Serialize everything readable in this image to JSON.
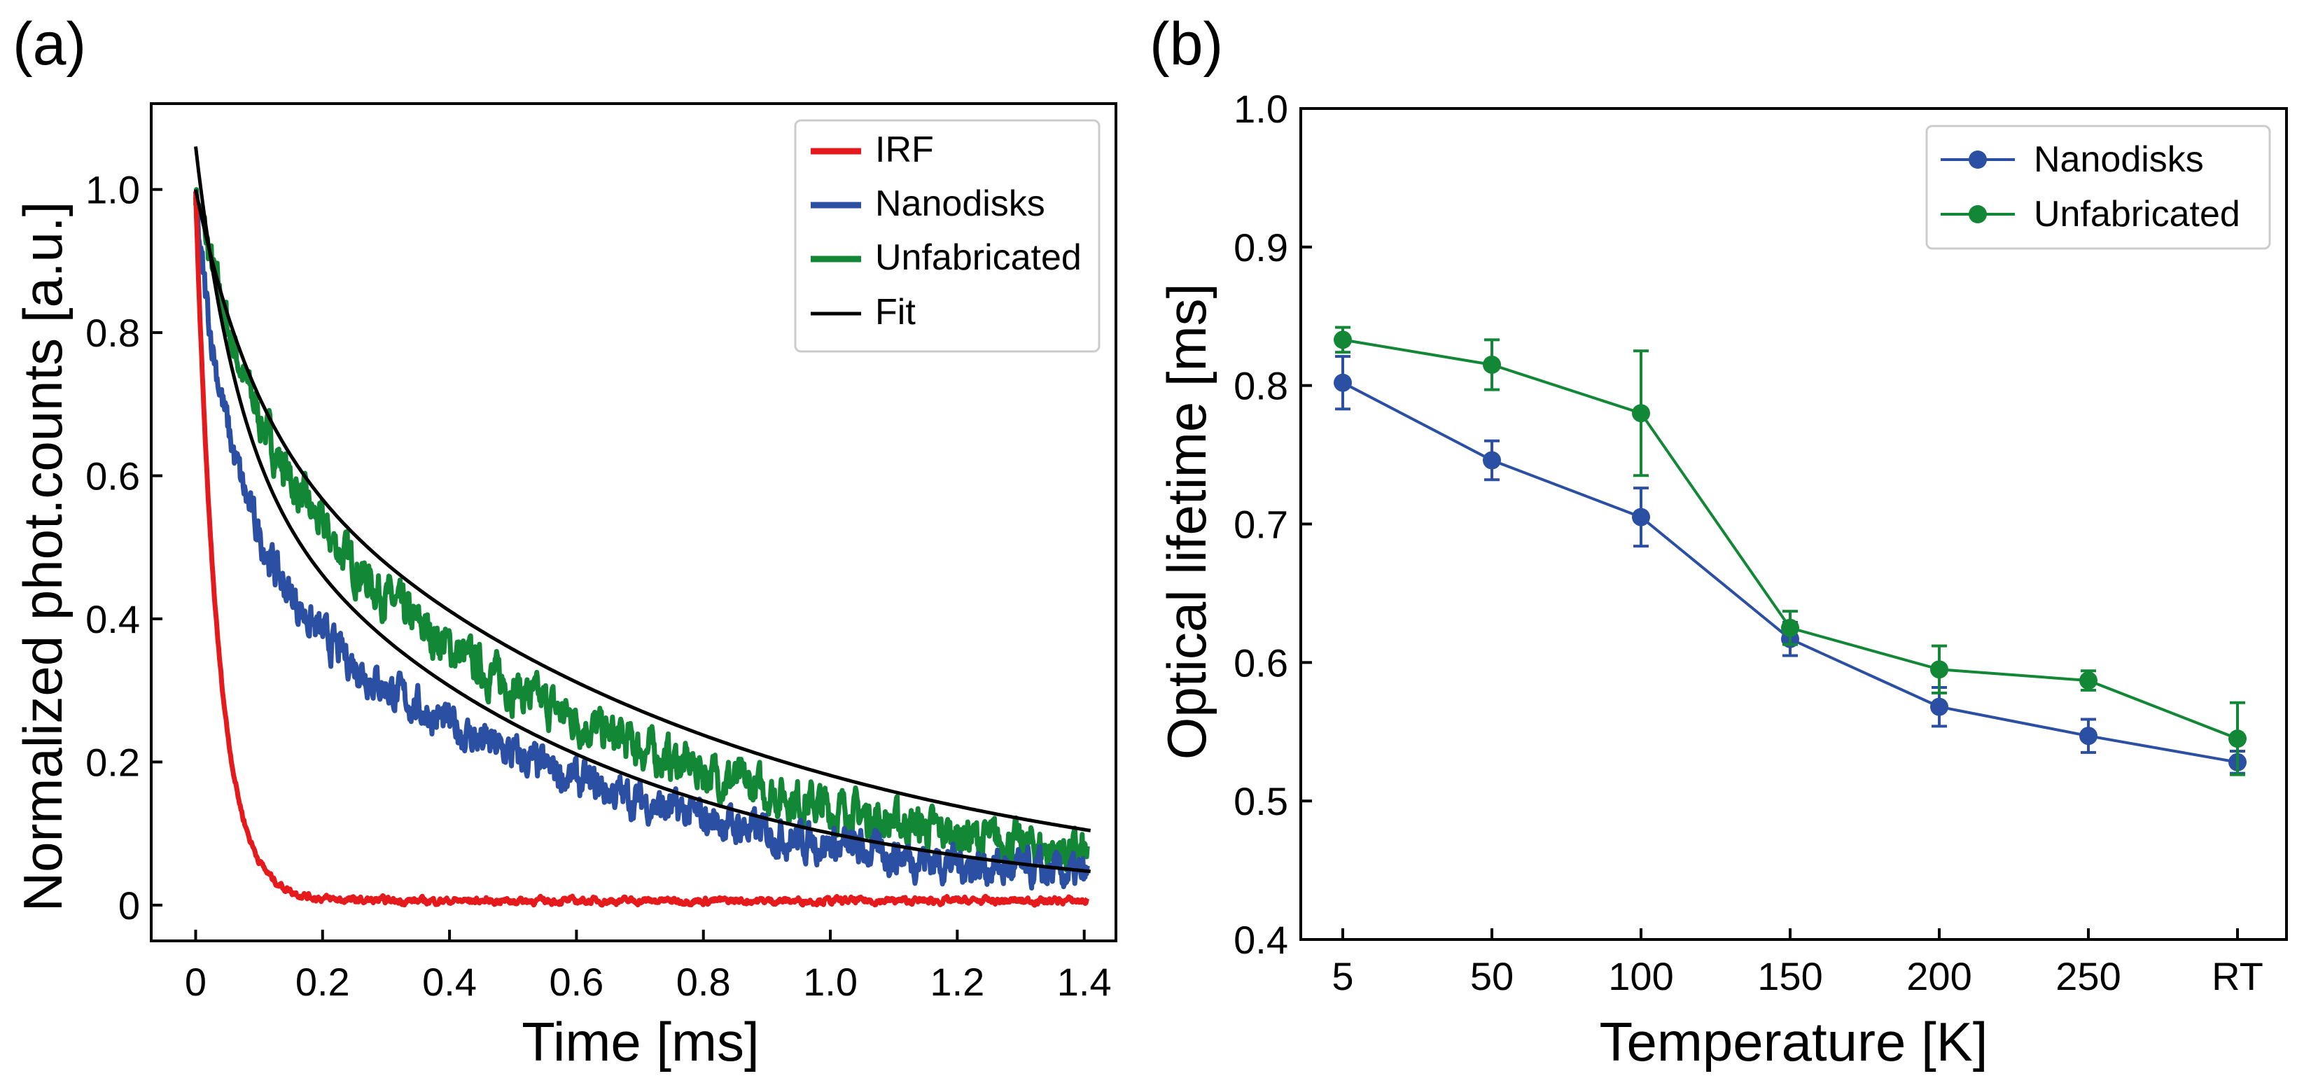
{
  "panel_labels": {
    "a": "(a)",
    "b": "(b)"
  },
  "chart_data": [
    {
      "type": "line",
      "panel": "(a)",
      "xlabel": "Time [ms]",
      "ylabel": "Normalized phot.counts [a.u.]",
      "xlim": [
        -0.07,
        1.45
      ],
      "ylim": [
        -0.05,
        1.12
      ],
      "xticks": [
        0,
        0.2,
        0.4,
        0.6,
        0.8,
        1.0,
        1.2,
        1.4
      ],
      "xtick_labels": [
        "0",
        "0.2",
        "0.4",
        "0.6",
        "0.8",
        "1.0",
        "1.2",
        "1.4"
      ],
      "yticks": [
        0,
        0.2,
        0.4,
        0.6,
        0.8,
        1.0
      ],
      "ytick_labels": [
        "0",
        "0.2",
        "0.4",
        "0.6",
        "0.8",
        "1.0"
      ],
      "legend_position": "top-right",
      "series": [
        {
          "name": "IRF",
          "color": "#e41a1c",
          "model": {
            "A": 0.99,
            "tau1": 0.035,
            "B": 0,
            "tau2": 1,
            "base": 0.006
          },
          "noise": 0.004
        },
        {
          "name": "Nanodisks",
          "color": "#2b4fa2",
          "model": {
            "A": 0.45,
            "tau1": 0.06,
            "B": 0.52,
            "tau2": 0.55,
            "base": 0
          },
          "noise": 0.022
        },
        {
          "name": "Unfabricated",
          "color": "#128736",
          "model": {
            "A": 0.32,
            "tau1": 0.09,
            "B": 0.68,
            "tau2": 0.62,
            "base": 0
          },
          "noise": 0.025
        },
        {
          "name": "Fit",
          "color": "#000000",
          "fits": [
            {
              "A": 0.42,
              "tau1": 0.065,
              "B": 0.64,
              "tau2": 0.54,
              "base": 0
            },
            {
              "A": 0.3,
              "tau1": 0.09,
              "B": 0.7,
              "tau2": 0.74,
              "base": 0
            }
          ]
        }
      ]
    },
    {
      "type": "line",
      "panel": "(b)",
      "xlabel": "Temperature [K]",
      "ylabel": "Optical lifetime [ms]",
      "categories": [
        "5",
        "50",
        "100",
        "150",
        "200",
        "250",
        "RT"
      ],
      "ylim": [
        0.4,
        1.0
      ],
      "yticks": [
        0.4,
        0.5,
        0.6,
        0.7,
        0.8,
        0.9,
        1.0
      ],
      "ytick_labels": [
        "0.4",
        "0.5",
        "0.6",
        "0.7",
        "0.8",
        "0.9",
        "1.0"
      ],
      "legend_position": "top-right",
      "series": [
        {
          "name": "Nanodisks",
          "color": "#2b4fa2",
          "values": [
            0.802,
            0.746,
            0.705,
            0.617,
            0.568,
            0.547,
            0.528
          ],
          "errors": [
            0.019,
            0.014,
            0.021,
            0.012,
            0.014,
            0.012,
            0.008
          ]
        },
        {
          "name": "Unfabricated",
          "color": "#128736",
          "values": [
            0.833,
            0.815,
            0.78,
            0.625,
            0.595,
            0.587,
            0.545
          ],
          "errors": [
            0.009,
            0.018,
            0.045,
            0.012,
            0.017,
            0.007,
            0.026
          ]
        }
      ]
    }
  ]
}
